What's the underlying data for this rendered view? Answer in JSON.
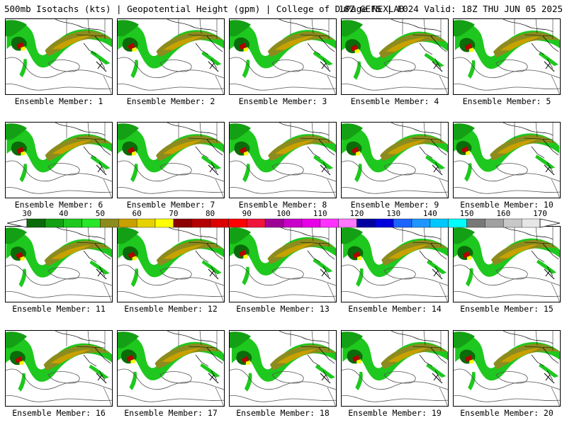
{
  "header": {
    "left": "500mb Isotachs (kts) | Geopotential Height (gpm) | College of DuPage NEXLAB",
    "right": "18Z GEFS | F024 Valid: 18Z THU JUN 05 2025"
  },
  "members": [
    {
      "label": "Ensemble Member: 1"
    },
    {
      "label": "Ensemble Member: 2"
    },
    {
      "label": "Ensemble Member: 3"
    },
    {
      "label": "Ensemble Member: 4"
    },
    {
      "label": "Ensemble Member: 5"
    },
    {
      "label": "Ensemble Member: 6"
    },
    {
      "label": "Ensemble Member: 7"
    },
    {
      "label": "Ensemble Member: 8"
    },
    {
      "label": "Ensemble Member: 9"
    },
    {
      "label": "Ensemble Member: 10"
    },
    {
      "label": "Ensemble Member: 11"
    },
    {
      "label": "Ensemble Member: 12"
    },
    {
      "label": "Ensemble Member: 13"
    },
    {
      "label": "Ensemble Member: 14"
    },
    {
      "label": "Ensemble Member: 15"
    },
    {
      "label": "Ensemble Member: 16"
    },
    {
      "label": "Ensemble Member: 17"
    },
    {
      "label": "Ensemble Member: 18"
    },
    {
      "label": "Ensemble Member: 19"
    },
    {
      "label": "Ensemble Member: 20"
    }
  ],
  "colorbar": {
    "labels": [
      "30",
      "40",
      "50",
      "60",
      "70",
      "80",
      "90",
      "100",
      "110",
      "120",
      "130",
      "140",
      "150",
      "160",
      "170"
    ],
    "colors": [
      "#0a6b0a",
      "#14a014",
      "#1ec81e",
      "#28e628",
      "#8c8c1e",
      "#c8a000",
      "#e6d200",
      "#ffff00",
      "#8c0000",
      "#b40000",
      "#dc0000",
      "#ff0000",
      "#f0143c",
      "#a00096",
      "#c800c8",
      "#e600e6",
      "#ff32ff",
      "#ff78ff",
      "#0000a0",
      "#0000dc",
      "#1e64ff",
      "#1e96ff",
      "#00c8ff",
      "#00ffff",
      "#787878",
      "#a0a0a0",
      "#c8c8c8",
      "#e6e6e6"
    ]
  }
}
